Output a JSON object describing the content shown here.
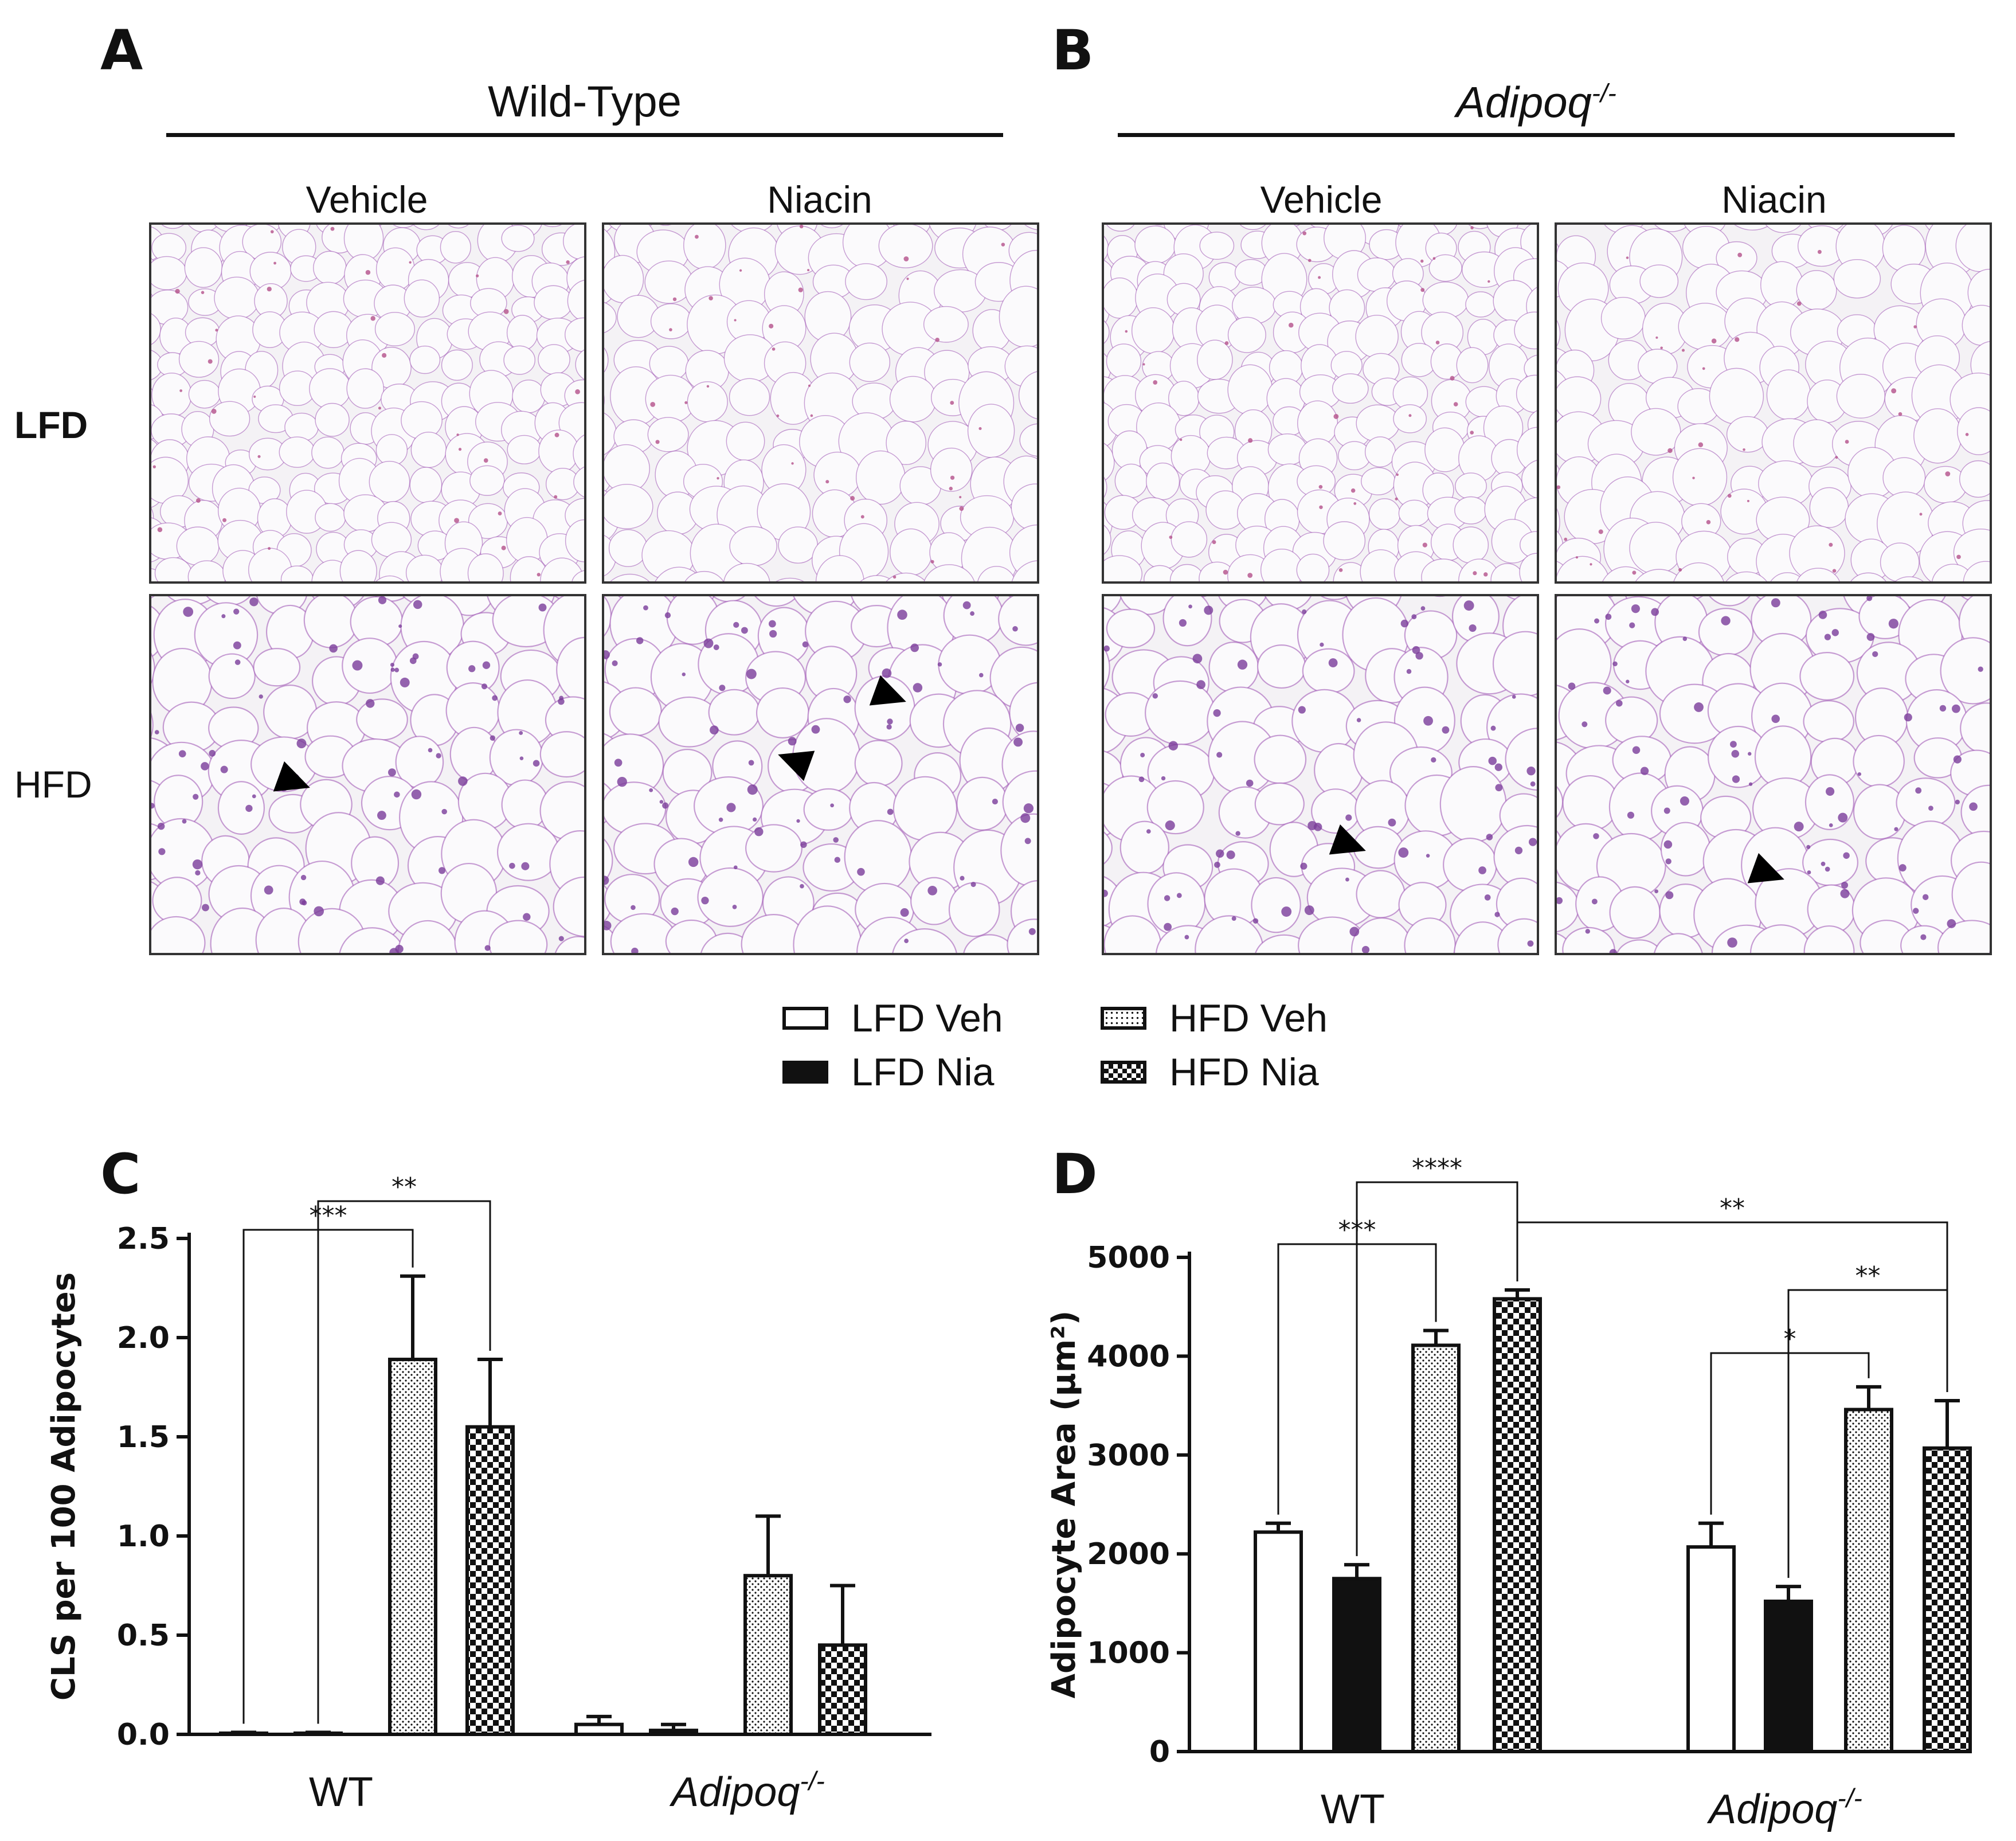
{
  "panels": {
    "A": {
      "label": "A",
      "group": "Wild-Type",
      "cols": [
        "Vehicle",
        "Niacin"
      ]
    },
    "B": {
      "label": "B",
      "group_base": "Adipoq",
      "group_sup": "-/-",
      "cols": [
        "Vehicle",
        "Niacin"
      ]
    },
    "rows": [
      "LFD",
      "HFD"
    ]
  },
  "legend": [
    {
      "label": "LFD Veh",
      "pattern": "open"
    },
    {
      "label": "HFD Veh",
      "pattern": "dots"
    },
    {
      "label": "LFD Nia",
      "pattern": "solid"
    },
    {
      "label": "HFD Nia",
      "pattern": "checker"
    }
  ],
  "colors": {
    "ink": "#111111",
    "stain": "#9b4fb0",
    "tissue_bg": "#f4f2f5"
  },
  "chart_data": [
    {
      "panel": "C",
      "type": "bar",
      "ylabel": "CLS per 100 Adipocytes",
      "ylim": [
        0,
        2.5
      ],
      "yticks": [
        "0.0",
        "0.5",
        "1.0",
        "1.5",
        "2.0",
        "2.5"
      ],
      "groups": [
        {
          "label": "WT",
          "sup": ""
        },
        {
          "label": "Adipoq",
          "sup": "-/-"
        }
      ],
      "series": [
        {
          "name": "LFD Veh",
          "pattern": "open",
          "values": [
            0.0,
            0.05
          ],
          "errors": [
            0.01,
            0.04
          ]
        },
        {
          "name": "LFD Nia",
          "pattern": "solid",
          "values": [
            0.0,
            0.02
          ],
          "errors": [
            0.01,
            0.03
          ]
        },
        {
          "name": "HFD Veh",
          "pattern": "dots",
          "values": [
            1.89,
            0.8
          ],
          "errors": [
            0.42,
            0.3
          ]
        },
        {
          "name": "HFD Nia",
          "pattern": "checker",
          "values": [
            1.55,
            0.45
          ],
          "errors": [
            0.34,
            0.3
          ]
        }
      ],
      "annotations": [
        {
          "text": "***",
          "from": [
            0,
            0
          ],
          "to": [
            0,
            2
          ]
        },
        {
          "text": "**",
          "from": [
            0,
            1
          ],
          "to": [
            0,
            3
          ]
        }
      ]
    },
    {
      "panel": "D",
      "type": "bar",
      "ylabel": "Adipocyte Area (μm²)",
      "ylim": [
        0,
        5000
      ],
      "yticks": [
        "0",
        "1000",
        "2000",
        "3000",
        "4000",
        "5000"
      ],
      "groups": [
        {
          "label": "WT",
          "sup": ""
        },
        {
          "label": "Adipoq",
          "sup": "-/-"
        }
      ],
      "series": [
        {
          "name": "LFD Veh",
          "pattern": "open",
          "values": [
            2220,
            2070
          ],
          "errors": [
            90,
            240
          ]
        },
        {
          "name": "LFD Nia",
          "pattern": "solid",
          "values": [
            1750,
            1520
          ],
          "errors": [
            140,
            150
          ]
        },
        {
          "name": "HFD Veh",
          "pattern": "dots",
          "values": [
            4110,
            3460
          ],
          "errors": [
            150,
            230
          ]
        },
        {
          "name": "HFD Nia",
          "pattern": "checker",
          "values": [
            4580,
            3070
          ],
          "errors": [
            90,
            480
          ]
        }
      ],
      "annotations": [
        {
          "text": "***",
          "from": [
            0,
            0
          ],
          "to": [
            0,
            2
          ]
        },
        {
          "text": "****",
          "from": [
            0,
            1
          ],
          "to": [
            0,
            3
          ]
        },
        {
          "text": "**",
          "from": [
            0,
            3
          ],
          "to": [
            1,
            3
          ]
        },
        {
          "text": "*",
          "from": [
            1,
            0
          ],
          "to": [
            1,
            2
          ]
        },
        {
          "text": "**",
          "from": [
            1,
            1
          ],
          "to": [
            1,
            3
          ]
        }
      ]
    }
  ]
}
